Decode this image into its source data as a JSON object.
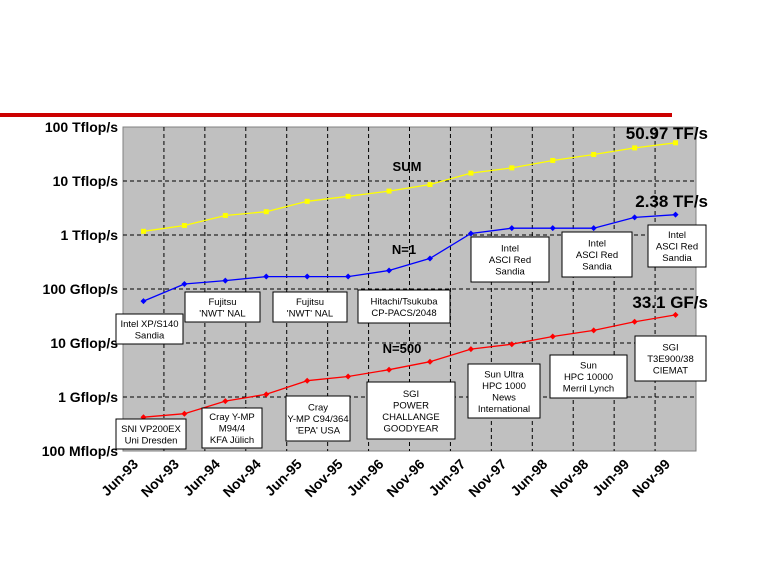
{
  "chart_data": {
    "type": "line",
    "y_scale": "log",
    "grid": true,
    "background_color": "#c0c0c0",
    "divider_color": "#cc0000",
    "y_ticks": [
      {
        "label": "100 Tflop/s",
        "value": 100000000000000
      },
      {
        "label": "10 Tflop/s",
        "value": 10000000000000
      },
      {
        "label": "1 Tflop/s",
        "value": 1000000000000
      },
      {
        "label": "100 Gflop/s",
        "value": 100000000000
      },
      {
        "label": "10 Gflop/s",
        "value": 10000000000
      },
      {
        "label": "1 Gflop/s",
        "value": 1000000000
      },
      {
        "label": "100 Mflop/s",
        "value": 100000000
      }
    ],
    "x_ticks": [
      "Jun-93",
      "Nov-93",
      "Jun-94",
      "Nov-94",
      "Jun-95",
      "Nov-95",
      "Jun-96",
      "Nov-96",
      "Jun-97",
      "Nov-97",
      "Jun-98",
      "Nov-98",
      "Jun-99",
      "Nov-99"
    ],
    "x": [
      0.5,
      1.5,
      2.5,
      3.5,
      4.5,
      5.5,
      6.5,
      7.5,
      8.5,
      9.5,
      10.5,
      11.5,
      12.5,
      13.5
    ],
    "series": [
      {
        "name": "SUM",
        "color": "#ffff00",
        "marker": "square",
        "values": [
          1170000000000,
          1500000000000,
          2300000000000,
          2700000000000,
          4200000000000,
          5200000000000,
          6500000000000,
          8600000000000,
          14000000000000,
          17500000000000,
          24000000000000,
          31000000000000,
          41000000000000,
          50970000000000
        ]
      },
      {
        "name": "N=1",
        "color": "#0000ff",
        "marker": "diamond",
        "values": [
          59700000000,
          124000000000,
          143000000000,
          170000000000,
          170000000000,
          170000000000,
          220000000000,
          368000000000,
          1068000000000,
          1338000000000,
          1338000000000,
          1338000000000,
          2121000000000,
          2379000000000
        ]
      },
      {
        "name": "N=500",
        "color": "#ff0000",
        "marker": "diamond",
        "values": [
          422000000,
          490000000,
          840000000,
          1120000000,
          2000000000,
          2400000000,
          3200000000,
          4500000000,
          7700000000,
          9500000000,
          13200000000,
          17100000000,
          24700000000,
          33100000000
        ]
      }
    ],
    "end_labels": [
      "50.97 TF/s",
      "2.38 TF/s",
      "33.1 GF/s"
    ],
    "annotations": [
      {
        "lines": [
          "Intel XP/S140",
          "Sandia"
        ]
      },
      {
        "lines": [
          "Fujitsu",
          "'NWT' NAL"
        ]
      },
      {
        "lines": [
          "Fujitsu",
          "'NWT' NAL"
        ]
      },
      {
        "lines": [
          "Hitachi/Tsukuba",
          "CP-PACS/2048"
        ]
      },
      {
        "lines": [
          "Intel",
          "ASCI Red",
          "Sandia"
        ]
      },
      {
        "lines": [
          "Intel",
          "ASCI Red",
          "Sandia"
        ]
      },
      {
        "lines": [
          "Intel",
          "ASCI Red",
          "Sandia"
        ]
      },
      {
        "lines": [
          "SNI VP200EX",
          "Uni Dresden"
        ]
      },
      {
        "lines": [
          "Cray Y-MP",
          "M94/4",
          "KFA Jülich"
        ]
      },
      {
        "lines": [
          "Cray",
          "Y-MP C94/364",
          "'EPA' USA"
        ]
      },
      {
        "lines": [
          "SGI",
          "POWER",
          "CHALLANGE",
          "GOODYEAR"
        ]
      },
      {
        "lines": [
          "Sun Ultra",
          "HPC 1000",
          "News",
          "International"
        ]
      },
      {
        "lines": [
          "Sun",
          "HPC 10000",
          "Merril Lynch"
        ]
      },
      {
        "lines": [
          "SGI",
          "T3E900/38",
          "CIEMAT"
        ]
      }
    ]
  }
}
